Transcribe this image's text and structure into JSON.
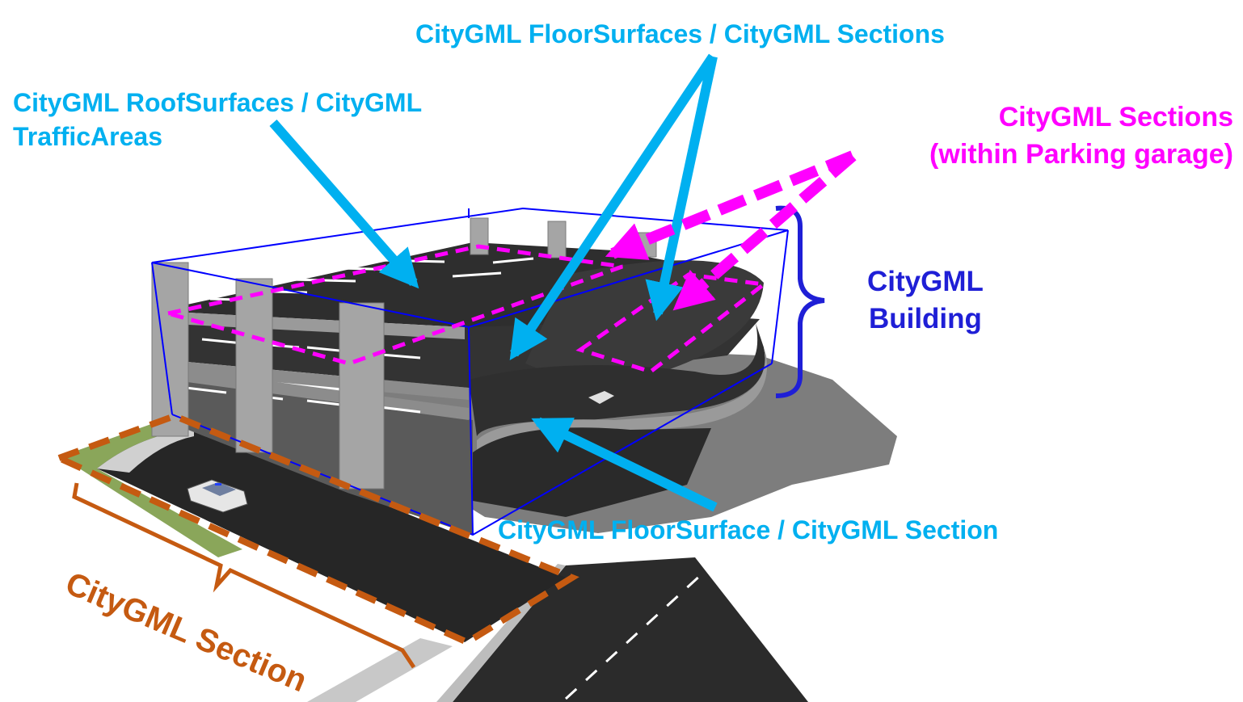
{
  "labels": {
    "floor_surfaces_sections": "CityGML FloorSurfaces / CityGML Sections",
    "roof_line1": "CityGML RoofSurfaces / CityGML",
    "roof_line2": "TrafficAreas",
    "sections_line1": "CityGML Sections",
    "sections_line2": "(within Parking garage)",
    "building_line1": "CityGML",
    "building_line2": "Building",
    "floor_surface_section": "CityGML FloorSurface / CityGML Section",
    "section": "CityGML Section"
  },
  "colors": {
    "cyan": "#00b0f0",
    "magenta": "#ff00ff",
    "navy": "#1f1fd6",
    "orange": "#c55a11",
    "asphalt": "#2d2d2d",
    "concrete": "#9a9a9a",
    "shadow": "#808080"
  }
}
